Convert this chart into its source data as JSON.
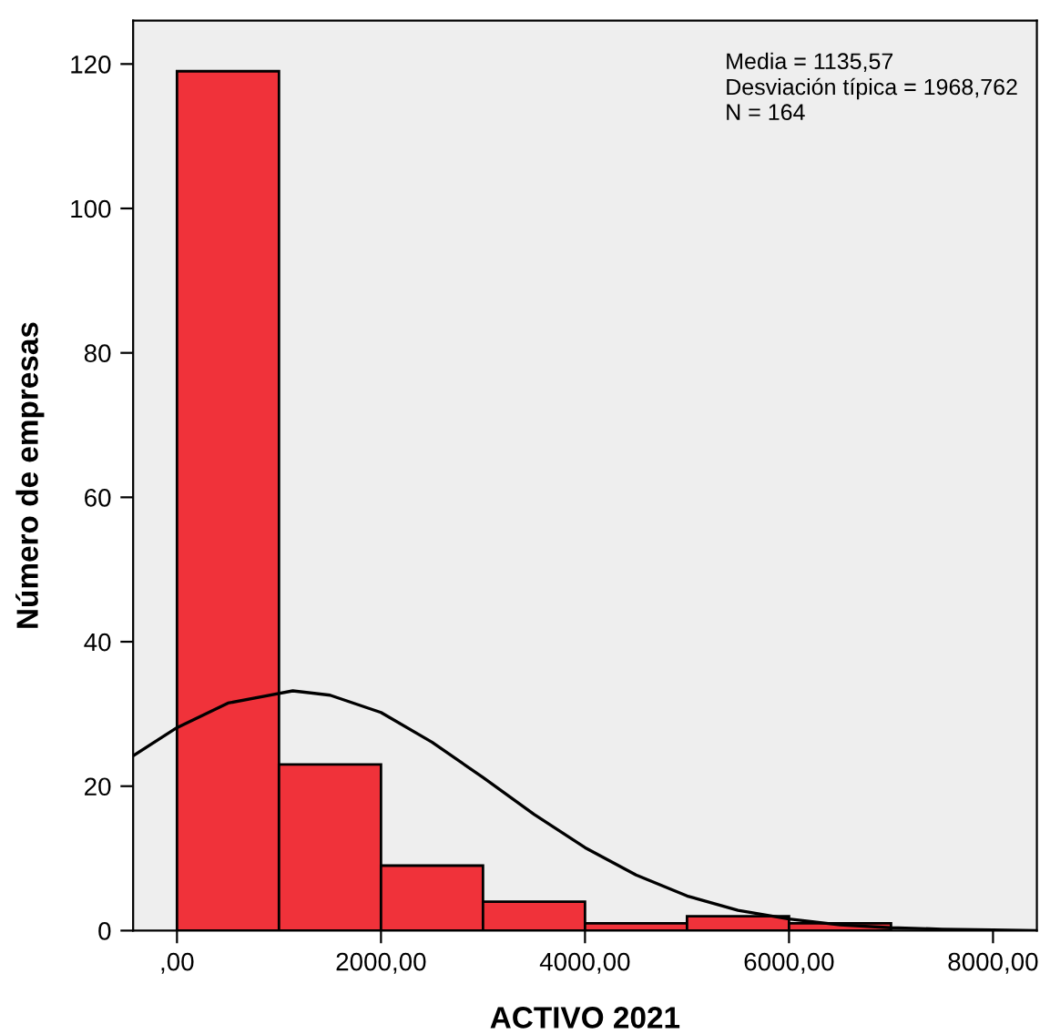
{
  "chart_data": {
    "type": "histogram",
    "xlabel": "ACTIVO 2021",
    "ylabel": "Número de empresas",
    "bins": [
      0,
      1000,
      2000,
      3000,
      4000,
      5000,
      6000,
      7000
    ],
    "values": [
      119,
      23,
      9,
      4,
      1,
      2,
      1
    ],
    "color": "#f0323a",
    "series": [
      {
        "type": "line",
        "color": "#000000",
        "x": [
          -430,
          0,
          500,
          1135,
          1500,
          2000,
          2500,
          3000,
          3500,
          4000,
          4500,
          5000,
          5500,
          6000,
          6500,
          7000,
          7500,
          8000,
          8430
        ],
        "values": [
          24.2,
          28.1,
          31.5,
          33.2,
          32.6,
          30.2,
          26.1,
          21.2,
          16.1,
          11.5,
          7.7,
          4.8,
          2.8,
          1.6,
          0.8,
          0.4,
          0.2,
          0.1,
          0.0
        ]
      }
    ],
    "xlim": [
      -430,
      8430
    ],
    "xticks": [
      {
        "value": 0,
        "label": ",00"
      },
      {
        "value": 2000,
        "label": "2000,00"
      },
      {
        "value": 4000,
        "label": "4000,00"
      },
      {
        "value": 6000,
        "label": "6000,00"
      },
      {
        "value": 8000,
        "label": "8000,00"
      }
    ],
    "ylim": [
      0,
      126
    ],
    "yticks": [
      0,
      20,
      40,
      60,
      80,
      100,
      120
    ],
    "annotations": [
      "Media = 1135,57",
      "Desviación típica = 1968,762",
      "N = 164"
    ],
    "grid": false,
    "legend": false
  }
}
